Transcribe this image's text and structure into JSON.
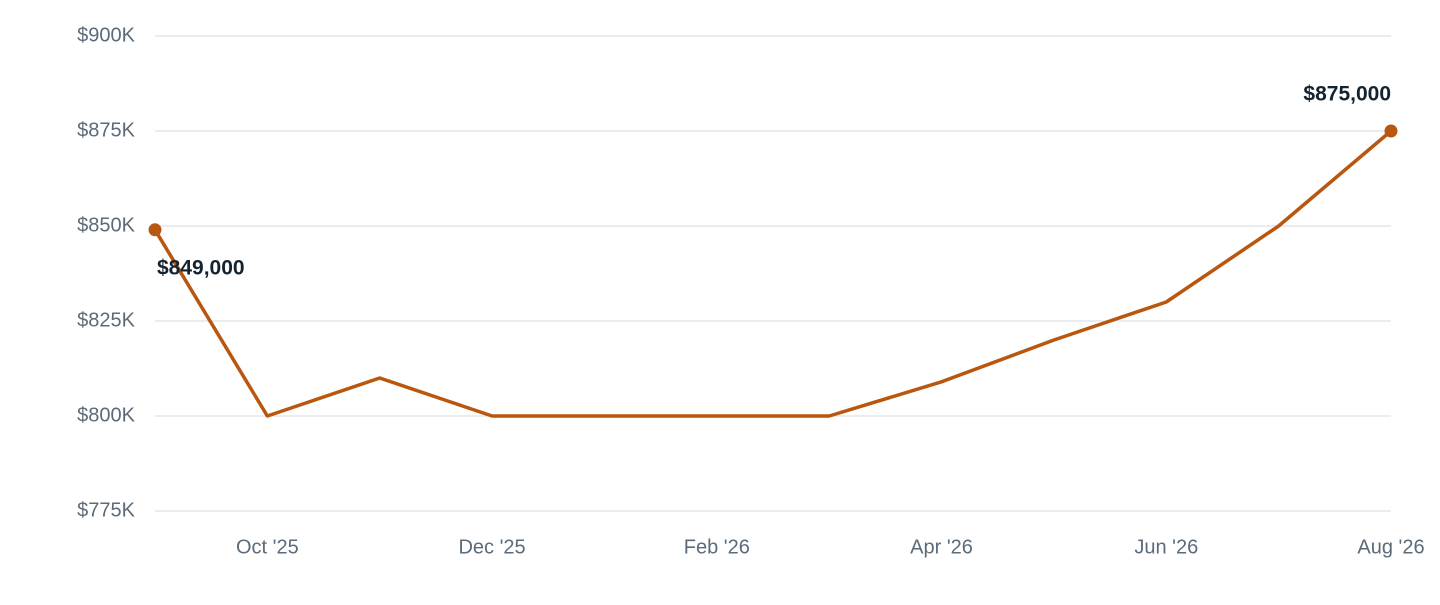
{
  "chart_data": {
    "type": "line",
    "categories": [
      null,
      "Oct '25",
      null,
      "Dec '25",
      null,
      "Feb '26",
      null,
      "Apr '26",
      null,
      "Jun '26",
      null,
      "Aug '26"
    ],
    "series": [
      {
        "color": "#b9560f",
        "values": [
          849000,
          800000,
          810000,
          800000,
          800000,
          800000,
          800000,
          809000,
          820000,
          830000,
          850000,
          875000
        ],
        "value_labels": [
          "$849,000",
          null,
          null,
          null,
          null,
          null,
          null,
          null,
          null,
          null,
          null,
          "$875,000"
        ]
      }
    ],
    "ylim": [
      775000,
      900000
    ],
    "yticks": [
      {
        "value": 775000,
        "label": "$775K"
      },
      {
        "value": 800000,
        "label": "$800K"
      },
      {
        "value": 825000,
        "label": "$825K"
      },
      {
        "value": 850000,
        "label": "$850K"
      },
      {
        "value": 875000,
        "label": "$875K"
      },
      {
        "value": 900000,
        "label": "$900K"
      }
    ],
    "grid": true
  }
}
